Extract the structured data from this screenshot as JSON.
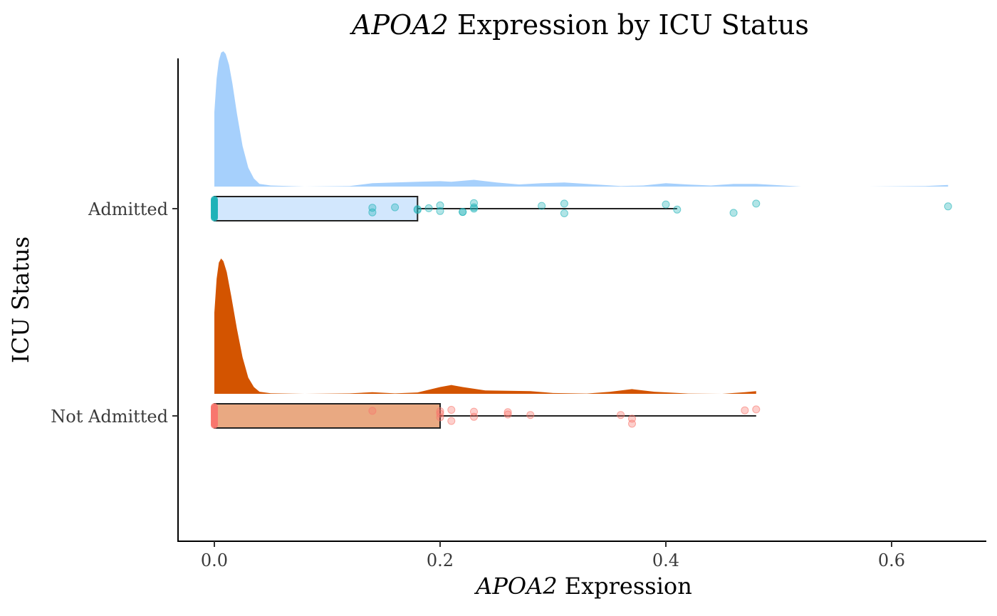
{
  "chart_data": {
    "type": "raincloud",
    "title": {
      "gene": "APOA2",
      "rest": " Expression by ICU Status"
    },
    "xlabel": {
      "gene": "APOA2",
      "rest": " Expression"
    },
    "ylabel": "ICU Status",
    "xlim": [
      -0.03,
      0.68
    ],
    "xticks": [
      0.0,
      0.2,
      0.4,
      0.6
    ],
    "xtick_labels": [
      "0.0",
      "0.2",
      "0.4",
      "0.6"
    ],
    "grid": false,
    "legend": "none",
    "groups": [
      {
        "label": "Admitted",
        "density_color": "#a6d0fc",
        "box_fill": "#d2e7fd",
        "point_color": "#20b2b8",
        "box": {
          "min": 0.0,
          "q1": 0.0,
          "median": 0.0,
          "q3": 0.18,
          "max": 0.41
        },
        "zero_points": 28,
        "points": [
          [
            0.14,
            0.4
          ],
          [
            0.14,
            -0.1
          ],
          [
            0.16,
            -0.15
          ],
          [
            0.18,
            0.15
          ],
          [
            0.18,
            0.05
          ],
          [
            0.19,
            -0.05
          ],
          [
            0.2,
            0.25
          ],
          [
            0.2,
            -0.35
          ],
          [
            0.22,
            0.35
          ],
          [
            0.22,
            0.35
          ],
          [
            0.23,
            0.0
          ],
          [
            0.23,
            -0.15
          ],
          [
            0.23,
            -0.6
          ],
          [
            0.29,
            -0.3
          ],
          [
            0.31,
            0.5
          ],
          [
            0.31,
            -0.55
          ],
          [
            0.4,
            -0.45
          ],
          [
            0.41,
            0.1
          ],
          [
            0.46,
            0.45
          ],
          [
            0.48,
            -0.55
          ],
          [
            0.65,
            -0.25
          ]
        ],
        "density": [
          [
            0.0,
            0.55
          ],
          [
            0.002,
            0.8
          ],
          [
            0.004,
            0.93
          ],
          [
            0.006,
            0.99
          ],
          [
            0.008,
            1.0
          ],
          [
            0.01,
            0.98
          ],
          [
            0.013,
            0.9
          ],
          [
            0.016,
            0.76
          ],
          [
            0.02,
            0.54
          ],
          [
            0.025,
            0.3
          ],
          [
            0.03,
            0.14
          ],
          [
            0.035,
            0.06
          ],
          [
            0.04,
            0.02
          ],
          [
            0.05,
            0.008
          ],
          [
            0.08,
            0.0
          ],
          [
            0.12,
            0.004
          ],
          [
            0.14,
            0.025
          ],
          [
            0.16,
            0.03
          ],
          [
            0.18,
            0.036
          ],
          [
            0.2,
            0.04
          ],
          [
            0.21,
            0.036
          ],
          [
            0.23,
            0.05
          ],
          [
            0.25,
            0.03
          ],
          [
            0.27,
            0.016
          ],
          [
            0.29,
            0.025
          ],
          [
            0.31,
            0.03
          ],
          [
            0.33,
            0.02
          ],
          [
            0.36,
            0.004
          ],
          [
            0.38,
            0.008
          ],
          [
            0.4,
            0.025
          ],
          [
            0.42,
            0.015
          ],
          [
            0.44,
            0.008
          ],
          [
            0.46,
            0.02
          ],
          [
            0.48,
            0.02
          ],
          [
            0.5,
            0.01
          ],
          [
            0.52,
            0.0
          ],
          [
            0.58,
            0.0
          ],
          [
            0.63,
            0.004
          ],
          [
            0.65,
            0.012
          ]
        ]
      },
      {
        "label": "Not Admitted",
        "density_color": "#d35400",
        "box_fill": "#e9a982",
        "point_color": "#f8766d",
        "box": {
          "min": 0.0,
          "q1": 0.0,
          "median": 0.0,
          "q3": 0.2,
          "max": 0.48
        },
        "zero_points": 28,
        "points": [
          [
            0.14,
            -0.55
          ],
          [
            0.2,
            0.15
          ],
          [
            0.2,
            -0.25
          ],
          [
            0.2,
            -0.5
          ],
          [
            0.21,
            0.55
          ],
          [
            0.21,
            -0.65
          ],
          [
            0.23,
            0.1
          ],
          [
            0.23,
            -0.45
          ],
          [
            0.26,
            -0.15
          ],
          [
            0.26,
            -0.4
          ],
          [
            0.28,
            -0.1
          ],
          [
            0.36,
            -0.1
          ],
          [
            0.37,
            0.85
          ],
          [
            0.37,
            0.3
          ],
          [
            0.47,
            -0.6
          ],
          [
            0.48,
            -0.7
          ]
        ],
        "density": [
          [
            0.0,
            0.6
          ],
          [
            0.002,
            0.85
          ],
          [
            0.004,
            0.97
          ],
          [
            0.006,
            1.0
          ],
          [
            0.008,
            0.98
          ],
          [
            0.011,
            0.9
          ],
          [
            0.015,
            0.72
          ],
          [
            0.02,
            0.48
          ],
          [
            0.025,
            0.27
          ],
          [
            0.03,
            0.12
          ],
          [
            0.035,
            0.05
          ],
          [
            0.04,
            0.015
          ],
          [
            0.05,
            0.004
          ],
          [
            0.08,
            0.0
          ],
          [
            0.12,
            0.003
          ],
          [
            0.14,
            0.012
          ],
          [
            0.16,
            0.003
          ],
          [
            0.18,
            0.01
          ],
          [
            0.2,
            0.05
          ],
          [
            0.21,
            0.065
          ],
          [
            0.22,
            0.05
          ],
          [
            0.24,
            0.025
          ],
          [
            0.26,
            0.022
          ],
          [
            0.28,
            0.02
          ],
          [
            0.3,
            0.006
          ],
          [
            0.33,
            0.002
          ],
          [
            0.35,
            0.014
          ],
          [
            0.37,
            0.035
          ],
          [
            0.39,
            0.015
          ],
          [
            0.42,
            0.002
          ],
          [
            0.45,
            0.0
          ],
          [
            0.47,
            0.012
          ],
          [
            0.48,
            0.02
          ]
        ]
      }
    ]
  }
}
